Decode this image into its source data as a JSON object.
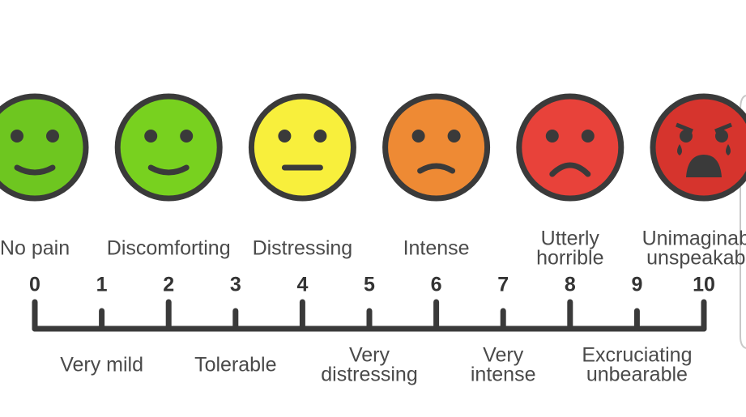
{
  "faces": [
    {
      "label": [
        "No pain"
      ]
    },
    {
      "label": [
        "Discomforting"
      ]
    },
    {
      "label": [
        "Distressing"
      ]
    },
    {
      "label": [
        "Intense"
      ]
    },
    {
      "label": [
        "Utterly",
        "horrible"
      ]
    },
    {
      "label": [
        "Unimaginable",
        "unspeakable"
      ]
    }
  ],
  "scale": [
    0,
    1,
    2,
    3,
    4,
    5,
    6,
    7,
    8,
    9,
    10
  ],
  "between_labels": [
    {
      "label": [
        "Very mild"
      ]
    },
    {
      "label": [
        "Tolerable"
      ]
    },
    {
      "label": [
        "Very",
        "distressing"
      ]
    },
    {
      "label": [
        "Very",
        "intense"
      ]
    },
    {
      "label": [
        "Excruciating",
        "unbearable"
      ]
    }
  ]
}
